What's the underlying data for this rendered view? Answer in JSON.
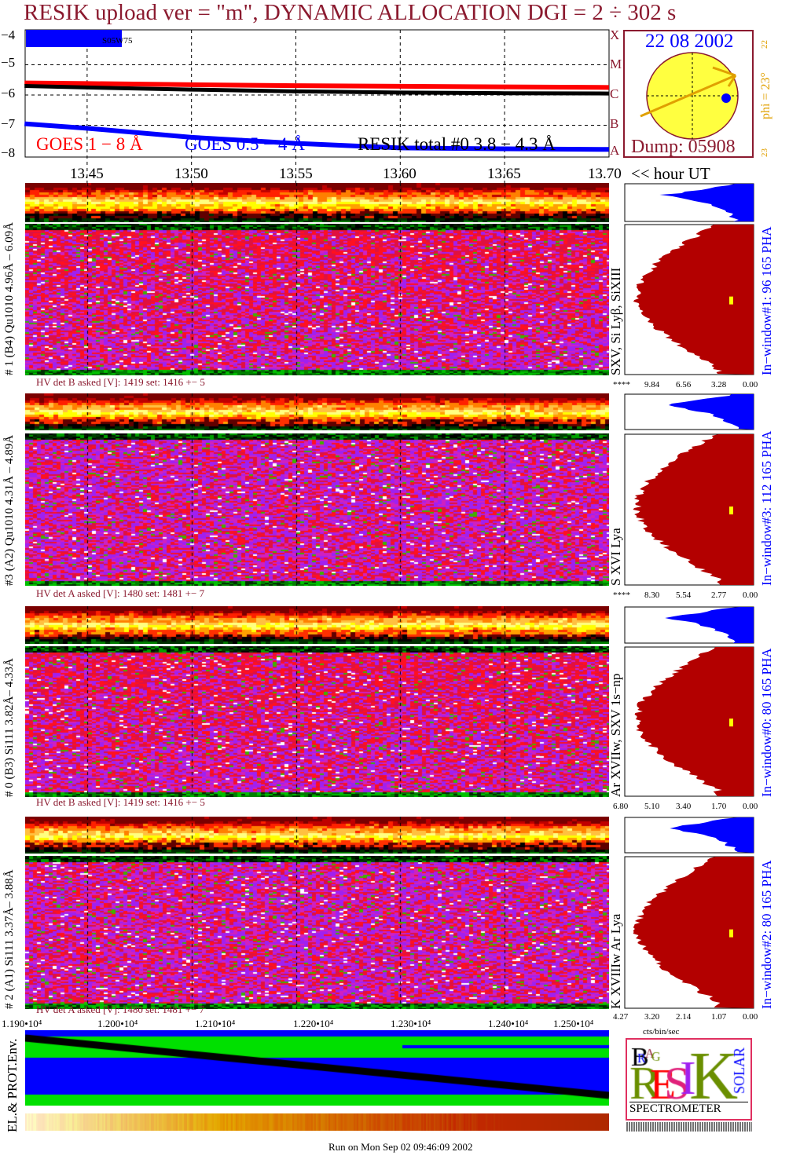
{
  "title": "RESIK upload ver = \"m\", DYNAMIC ALLOCATION  DGI =   2 ÷ 302 s",
  "colors": {
    "title": "#8b1a2f",
    "goes_long": "#ff0000",
    "goes_short": "#0000ff",
    "resik": "#000000",
    "hist_main": "#b30000",
    "hist_pha": "#0000ff",
    "label_blue": "#0000ff",
    "phi": "#e0a000"
  },
  "top_plot": {
    "y_ticks": [
      "−4",
      "−5",
      "−6",
      "−7",
      "−8"
    ],
    "flare_class": [
      "A",
      "B",
      "C",
      "M",
      "X"
    ],
    "region": "S05W75",
    "legend": {
      "goes_long": "GOES 1 − 8 Å",
      "goes_short": "GOES 0.5 − 4 Å",
      "resik": "RESIK total #0  3.8 − 4.3 Å"
    },
    "series": {
      "hours": [
        13.42,
        13.45,
        13.5,
        13.55,
        13.6,
        13.65,
        13.7
      ],
      "goes_long_log": [
        -5.6,
        -5.62,
        -5.66,
        -5.69,
        -5.71,
        -5.73,
        -5.75
      ],
      "goes_short_log": [
        -6.95,
        -7.1,
        -7.4,
        -7.6,
        -7.75,
        -7.78,
        -7.8
      ],
      "resik_log": [
        -5.7,
        -5.75,
        -5.82,
        -5.88,
        -5.92,
        -5.94,
        -5.95
      ]
    }
  },
  "sun": {
    "date": "22 08 2002",
    "phi": "phi = 23°",
    "phi_top": "22",
    "phi_bottom": "23",
    "dump": "Dump: 05908"
  },
  "time_axis": {
    "ticks": [
      "13.45",
      "13.50",
      "13.55",
      "13.60",
      "13.65",
      "13.70"
    ],
    "unit": "<< hour UT"
  },
  "panels": [
    {
      "label": "# 1 (B4) Qu1010 4.96Å – 6.09Å",
      "lines": "SXV, Si Lyβ, SiXIII",
      "window": "In−window#1:   96 165  PHA",
      "hv": "HV det B asked [V]:  1419 set:  1416 +−   5",
      "hist_ticks": [
        "****",
        "9.84",
        "6.56",
        "3.28",
        "0.00"
      ]
    },
    {
      "label": "#3 (A2) Qu1010  4.31Å – 4.89Å",
      "lines": "S XVI Lya",
      "window": "In−window#3:  112 165  PHA",
      "hv": "HV det A asked [V]:  1480 set:  1481 +−   7",
      "hist_ticks": [
        "****",
        "8.30",
        "5.54",
        "2.77",
        "0.00"
      ]
    },
    {
      "label": "# 0 (B3) Si111  3.82Å– 4.33Å",
      "lines": "Ar XVIIw,  SXV 1s−np",
      "window": "In−window#0:   80 165  PHA",
      "hv": "HV det B asked [V]:  1419 set:  1416 +−   5",
      "hist_ticks": [
        "6.80",
        "5.10",
        "3.40",
        "1.70",
        "0.00"
      ]
    },
    {
      "label": "# 2 (A1) Si111  3.37Å– 3.88Å",
      "lines": "K XVIIIw  Ar Lya",
      "window": "In−window#2:   80 165  PHA",
      "hv": "HV det A asked [V]:  1480 set:  1481 +−   7",
      "hist_ticks": [
        "4.27",
        "3.20",
        "2.14",
        "1.07",
        "0.00"
      ]
    }
  ],
  "hist_unit": "cts/bin/sec",
  "env": {
    "label": "EL.& PROT.Env.",
    "ticks": [
      "1.190•10⁴",
      "1.200•10⁴",
      "1.210•10⁴",
      "1.220•10⁴",
      "1.230•10⁴",
      "1.240•10⁴",
      "1.250•10⁴"
    ]
  },
  "logo": {
    "text": "RESIK",
    "sub": "SPECTROMETER",
    "letters": [
      "B",
      "R",
      "A",
      "G",
      "S",
      "O",
      "L",
      "A",
      "R"
    ]
  },
  "footer": "Run on Mon Sep 02 09:46:09 2002"
}
